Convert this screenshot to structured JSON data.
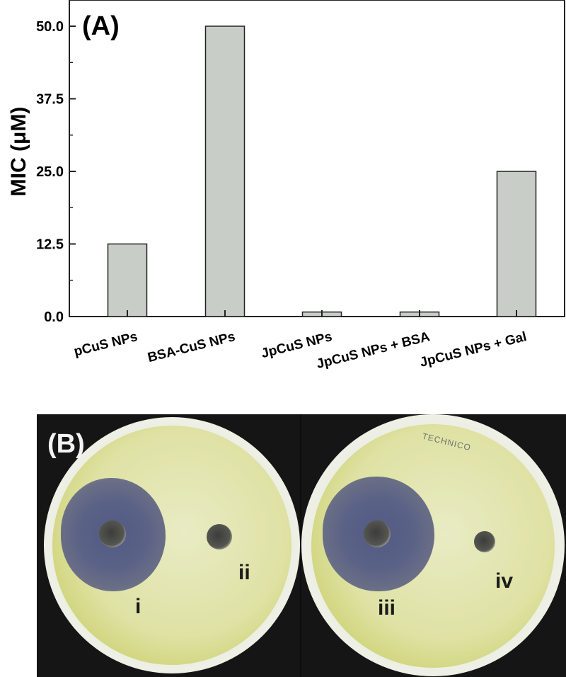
{
  "chart_data": {
    "type": "bar",
    "title": "",
    "xlabel": "",
    "ylabel": "MIC (μM)",
    "categories": [
      "pCuS NPs",
      "BSA-CuS NPs",
      "JpCuS NPs",
      "JpCuS NPs + BSA",
      "JpCuS NPs + Gal"
    ],
    "values": [
      12.5,
      50.0,
      0.78,
      0.78,
      25.0
    ],
    "ylim": [
      0,
      52.5
    ],
    "yticks": [
      0.0,
      12.5,
      25.0,
      37.5,
      50.0
    ],
    "ytick_labels": [
      "0.0",
      "12.5",
      "25.0",
      "37.5",
      "50.0"
    ],
    "grid": false,
    "legend": "none",
    "bar_color": "#c9cdc8"
  },
  "panels": {
    "a_label": "(A)",
    "b_label": "(B)"
  },
  "photo": {
    "plate_labels": [
      "i",
      "ii",
      "iii",
      "iv"
    ],
    "dish_brand": "TECHNICO"
  }
}
